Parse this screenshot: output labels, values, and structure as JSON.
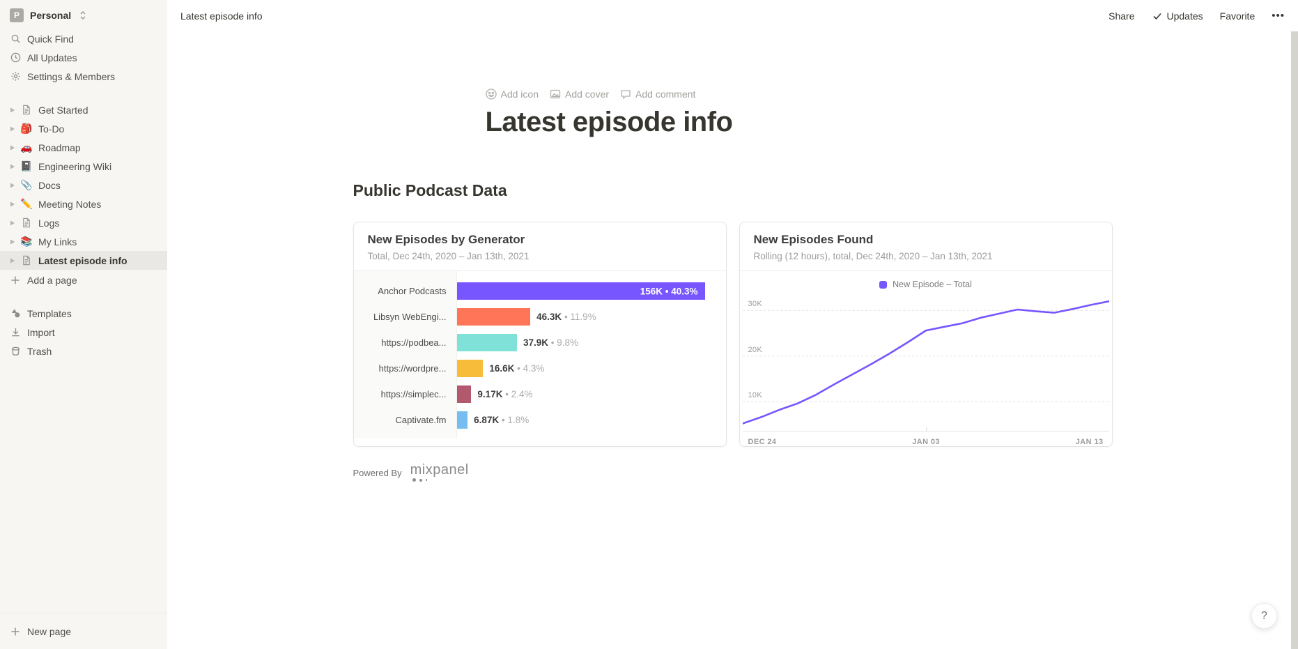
{
  "workspace": {
    "name": "Personal",
    "avatar_letter": "P"
  },
  "topbar": {
    "breadcrumb": "Latest episode info",
    "share_label": "Share",
    "updates_label": "Updates",
    "favorite_label": "Favorite",
    "more_label": "•••"
  },
  "sidebar": {
    "nav": [
      {
        "label": "Quick Find",
        "icon": "search-icon"
      },
      {
        "label": "All Updates",
        "icon": "clock-icon"
      },
      {
        "label": "Settings & Members",
        "icon": "gear-icon"
      }
    ],
    "pages": [
      {
        "label": "Get Started",
        "icon": "page-icon",
        "emoji": "",
        "selected": false
      },
      {
        "label": "To-Do",
        "icon": "backpack-emoji-icon",
        "emoji": "🎒",
        "selected": false
      },
      {
        "label": "Roadmap",
        "icon": "car-emoji-icon",
        "emoji": "🚗",
        "selected": false
      },
      {
        "label": "Engineering Wiki",
        "icon": "notebook-emoji-icon",
        "emoji": "📓",
        "selected": false
      },
      {
        "label": "Docs",
        "icon": "paperclip-emoji-icon",
        "emoji": "📎",
        "selected": false
      },
      {
        "label": "Meeting Notes",
        "icon": "pencil-emoji-icon",
        "emoji": "✏️",
        "selected": false
      },
      {
        "label": "Logs",
        "icon": "page-icon",
        "emoji": "",
        "selected": false
      },
      {
        "label": "My Links",
        "icon": "books-emoji-icon",
        "emoji": "📚",
        "selected": false
      },
      {
        "label": "Latest episode info",
        "icon": "page-icon",
        "emoji": "",
        "selected": true
      }
    ],
    "add_page_label": "Add a page",
    "tools": [
      {
        "label": "Templates",
        "icon": "templates-icon"
      },
      {
        "label": "Import",
        "icon": "import-icon"
      },
      {
        "label": "Trash",
        "icon": "trash-icon"
      }
    ],
    "new_page_label": "New page"
  },
  "page": {
    "actions": [
      {
        "label": "Add icon",
        "icon": "emoji-face-icon"
      },
      {
        "label": "Add cover",
        "icon": "image-icon"
      },
      {
        "label": "Add comment",
        "icon": "comment-icon"
      }
    ],
    "title": "Latest episode info",
    "section_heading": "Public Podcast Data",
    "powered_by_label": "Powered By",
    "brand_name": "mixpanel"
  },
  "chart_data": [
    {
      "type": "bar",
      "orientation": "horizontal",
      "title": "New Episodes by Generator",
      "subtitle": "Total, Dec 24th, 2020 – Jan 13th, 2021",
      "categories": [
        "Anchor Podcasts",
        "Libsyn WebEngi...",
        "https://podbea...",
        "https://wordpre...",
        "https://simplec...",
        "Captivate.fm"
      ],
      "values": [
        156000,
        46300,
        37900,
        16600,
        9170,
        6870
      ],
      "value_labels": [
        "156K",
        "46.3K",
        "37.9K",
        "16.6K",
        "9.17K",
        "6.87K"
      ],
      "percents": [
        "40.3%",
        "11.9%",
        "9.8%",
        "4.3%",
        "2.4%",
        "1.8%"
      ],
      "separator": "•",
      "colors": [
        "#7856FF",
        "#FF7557",
        "#80E1D9",
        "#F8BC3B",
        "#B2596E",
        "#77BEF0"
      ],
      "xlim": [
        0,
        156000
      ]
    },
    {
      "type": "line",
      "title": "New Episodes Found",
      "subtitle": "Rolling (12 hours), total, Dec 24th, 2020 – Jan 13th, 2021",
      "legend": "New Episode – Total",
      "line_color": "#7856FF",
      "x_range": [
        "Dec 24, 2020",
        "Jan 13, 2021"
      ],
      "x_tick_labels": [
        "DEC 24",
        "JAN 03",
        "JAN 13"
      ],
      "y_gridlines": [
        10000,
        20000,
        30000
      ],
      "y_tick_labels": [
        "10K",
        "20K",
        "30K"
      ],
      "ylim": [
        3600,
        33100
      ],
      "values": [
        5200,
        6600,
        8200,
        9600,
        11500,
        13800,
        16000,
        18200,
        20500,
        23000,
        25600,
        26400,
        27200,
        28400,
        29300,
        30200,
        29800,
        29500,
        30300,
        31200,
        32000
      ],
      "grid": "dashed-horizontal",
      "legend_position": "top-center"
    }
  ],
  "help_label": "?"
}
